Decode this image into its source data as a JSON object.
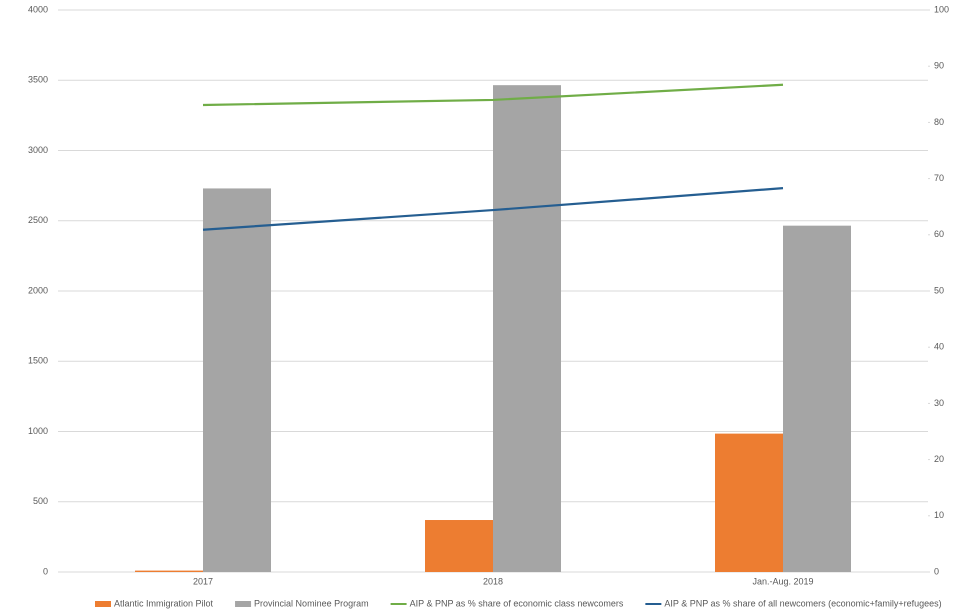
{
  "chart_data": {
    "type": "combo",
    "categories": [
      "2017",
      "2018",
      "Jan.-Aug. 2019"
    ],
    "series": [
      {
        "name": "Atlantic Immigration Pilot",
        "type": "bar",
        "color": "#ed7d31",
        "values": [
          10,
          370,
          985
        ]
      },
      {
        "name": "Provincial Nominee Program",
        "type": "bar",
        "color": "#a5a5a5",
        "values": [
          2730,
          3465,
          2465
        ]
      },
      {
        "name": "AIP & PNP as % share of economic class newcomers",
        "type": "line",
        "axis": "y2",
        "color": "#70ad47",
        "values": [
          83.1,
          84,
          86.7
        ]
      },
      {
        "name": "AIP & PNP as % share of all newcomers (economic+family+refugees)",
        "type": "line",
        "axis": "y2",
        "color": "#255e91",
        "values": [
          60.9,
          64.4,
          68.3
        ]
      }
    ],
    "ylim": [
      0,
      4000
    ],
    "yticks": [
      0,
      500,
      1000,
      1500,
      2000,
      2500,
      3000,
      3500,
      4000
    ],
    "y2lim": [
      0,
      100
    ],
    "y2ticks": [
      0,
      10,
      20,
      30,
      40,
      50,
      60,
      70,
      80,
      90,
      100
    ],
    "grid": true
  }
}
